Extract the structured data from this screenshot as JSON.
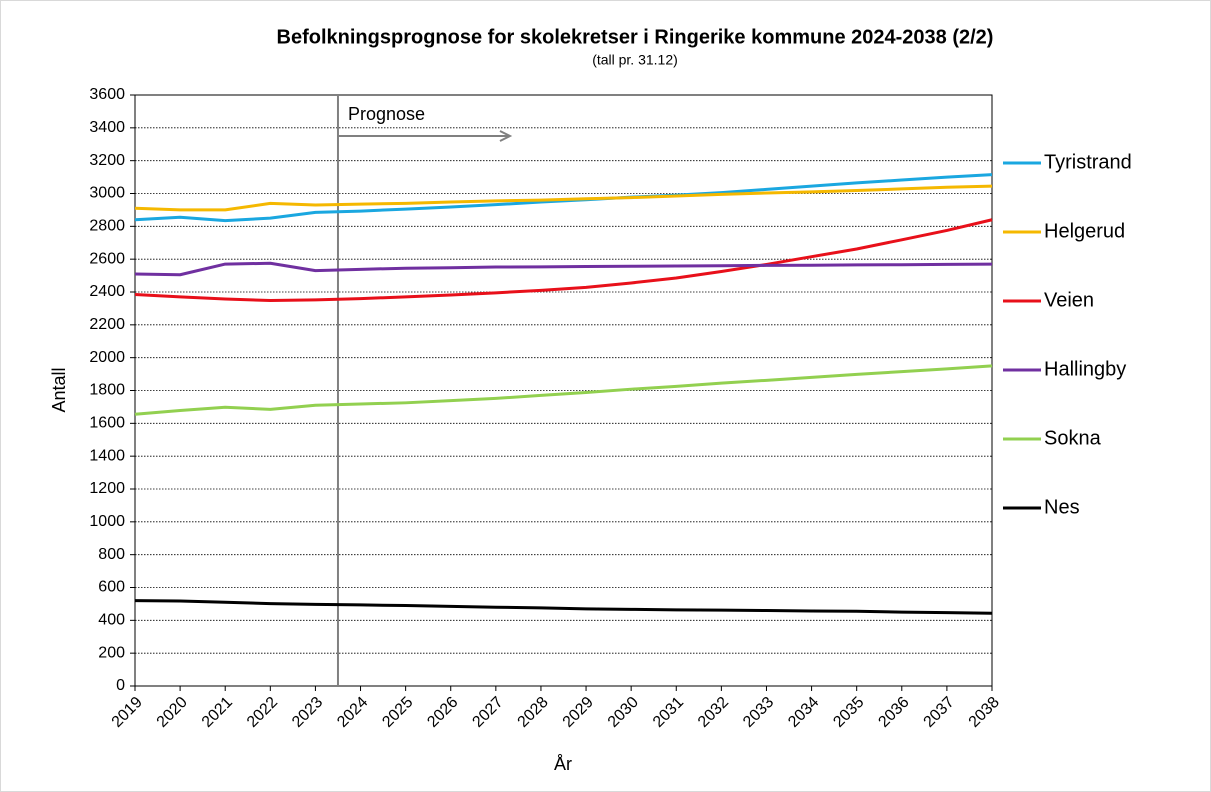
{
  "chart_data": {
    "type": "line",
    "title": "Befolkningsprognose for skolekretser i Ringerike kommune 2024-2038 (2/2)",
    "subtitle": "(tall pr. 31.12)",
    "x_label": "År",
    "y_label": "Antall",
    "annotation": "Prognose",
    "categories": [
      "2019",
      "2020",
      "2021",
      "2022",
      "2023",
      "2024",
      "2025",
      "2026",
      "2027",
      "2028",
      "2029",
      "2030",
      "2031",
      "2032",
      "2033",
      "2034",
      "2035",
      "2036",
      "2037",
      "2038"
    ],
    "ylim": [
      0,
      3600
    ],
    "yticks": [
      0,
      200,
      400,
      600,
      800,
      1000,
      1200,
      1400,
      1600,
      1800,
      2000,
      2200,
      2400,
      2600,
      2800,
      3000,
      3200,
      3400,
      3600
    ],
    "grid": true,
    "legend": "right",
    "series": [
      {
        "name": "Tyristrand",
        "color": "#1aa7e0",
        "values": [
          2840,
          2855,
          2835,
          2850,
          2885,
          2893,
          2905,
          2918,
          2932,
          2948,
          2962,
          2978,
          2990,
          3005,
          3025,
          3045,
          3065,
          3082,
          3100,
          3115
        ]
      },
      {
        "name": "Helgerud",
        "color": "#f5b800",
        "values": [
          2910,
          2900,
          2900,
          2940,
          2930,
          2935,
          2940,
          2948,
          2955,
          2960,
          2968,
          2975,
          2985,
          2995,
          3003,
          3010,
          3018,
          3028,
          3038,
          3045
        ]
      },
      {
        "name": "Veien",
        "color": "#e8101a",
        "values": [
          2385,
          2370,
          2357,
          2348,
          2352,
          2360,
          2370,
          2382,
          2395,
          2410,
          2428,
          2455,
          2485,
          2525,
          2568,
          2615,
          2662,
          2718,
          2775,
          2840
        ]
      },
      {
        "name": "Hallingby",
        "color": "#7030a0",
        "values": [
          2510,
          2505,
          2570,
          2575,
          2530,
          2538,
          2545,
          2548,
          2552,
          2553,
          2555,
          2557,
          2558,
          2560,
          2562,
          2563,
          2565,
          2566,
          2568,
          2570
        ]
      },
      {
        "name": "Sokna",
        "color": "#92d050",
        "values": [
          1655,
          1678,
          1698,
          1685,
          1710,
          1718,
          1725,
          1738,
          1752,
          1770,
          1788,
          1808,
          1825,
          1845,
          1862,
          1880,
          1898,
          1915,
          1932,
          1950
        ]
      },
      {
        "name": "Nes",
        "color": "#000000",
        "values": [
          520,
          518,
          510,
          502,
          497,
          494,
          490,
          485,
          480,
          476,
          470,
          467,
          464,
          462,
          460,
          457,
          455,
          450,
          447,
          443
        ]
      }
    ]
  }
}
